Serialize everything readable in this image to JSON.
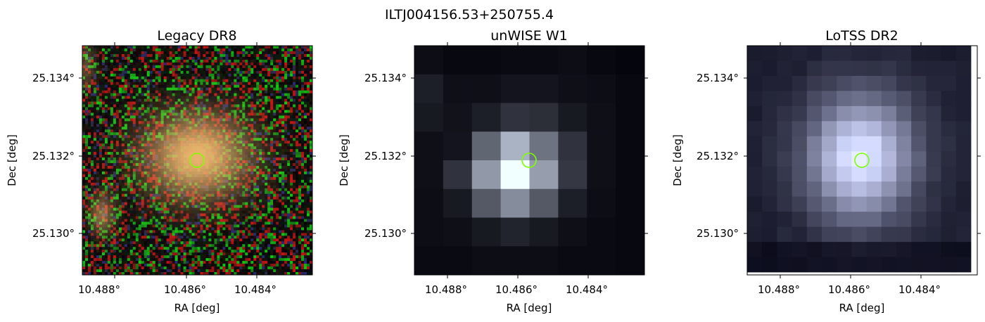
{
  "figure": {
    "title": "ILTJ004156.53+250755.4"
  },
  "panels": [
    {
      "id": "legacy",
      "title": "Legacy DR8",
      "xlabel": "RA [deg]",
      "ylabel": "Dec [deg]",
      "xticks": [
        "10.488°",
        "10.486°",
        "10.484°"
      ],
      "yticks": [
        "25.134°",
        "25.132°",
        "25.130°"
      ],
      "marker_color": "#7fff00"
    },
    {
      "id": "unwise",
      "title": "unWISE W1",
      "xlabel": "RA [deg]",
      "ylabel": "Dec [deg]",
      "xticks": [
        "10.488°",
        "10.486°",
        "10.484°"
      ],
      "yticks": [
        "25.134°",
        "25.132°",
        "25.130°"
      ],
      "marker_color": "#7fff00"
    },
    {
      "id": "lotss",
      "title": "LoTSS DR2",
      "xlabel": "RA [deg]",
      "ylabel": "Dec [deg]",
      "xticks": [
        "10.488°",
        "10.486°",
        "10.484°"
      ],
      "yticks": [
        "25.134°",
        "25.132°",
        "25.130°"
      ],
      "marker_color": "#7fff00"
    }
  ]
}
